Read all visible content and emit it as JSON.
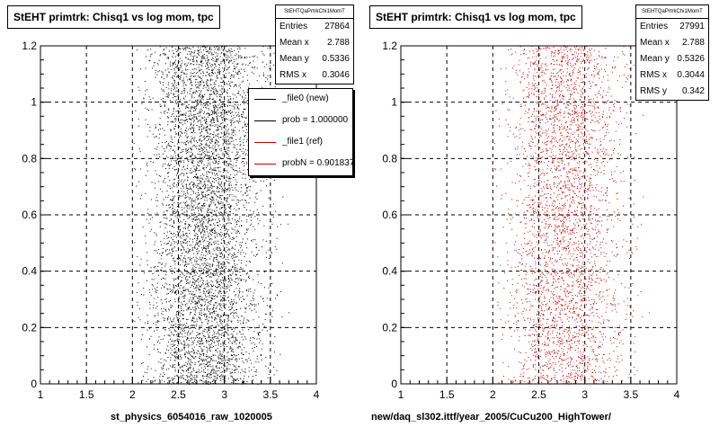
{
  "chart_data": [
    {
      "type": "scatter",
      "title": "StEHT primtrk: Chisq1 vs log mom, tpc",
      "xlabel": "st_physics_6054016_raw_1020005",
      "ylabel": "",
      "xlim": [
        1,
        4
      ],
      "ylim": [
        0,
        1.2
      ],
      "x_ticks": [
        "1",
        "1.5",
        "2",
        "2.5",
        "3",
        "3.5",
        "4"
      ],
      "y_ticks": [
        "0",
        "0.2",
        "0.4",
        "0.6",
        "0.8",
        "1",
        "1.2"
      ],
      "grid": true,
      "point_color": "#000000",
      "x_range_of_points": [
        2.0,
        3.75
      ],
      "x_mean": 2.788,
      "x_rms": 0.3,
      "stats": {
        "header": "StEHTQaPrtrkChi1MomT",
        "entries": {
          "label": "Entries",
          "value": "27864"
        },
        "mean_x": {
          "label": "Mean x",
          "value": "2.788"
        },
        "mean_y": {
          "label": "Mean y",
          "value": "0.5336"
        },
        "rms_x": {
          "label": "RMS x",
          "value": "0.3046"
        }
      }
    },
    {
      "type": "scatter",
      "title": "StEHT primtrk: Chisq1 vs log mom, tpc",
      "xlabel": "new/daq_sl302.ittf/year_2005/CuCu200_HighTower/",
      "ylabel": "",
      "xlim": [
        1,
        4
      ],
      "ylim": [
        0,
        1.2
      ],
      "x_ticks": [
        "1",
        "1.5",
        "2",
        "2.5",
        "3",
        "3.5",
        "4"
      ],
      "y_ticks": [
        "0",
        "0.2",
        "0.4",
        "0.6",
        "0.8",
        "1",
        "1.2"
      ],
      "grid": true,
      "point_color": "#cc0000",
      "x_range_of_points": [
        2.0,
        3.75
      ],
      "x_mean": 2.788,
      "x_rms": 0.3,
      "stats": {
        "header": "StEHTQaPrtrkChi1MomT",
        "entries": {
          "label": "Entries",
          "value": "27991"
        },
        "mean_x": {
          "label": "Mean x",
          "value": "2.788"
        },
        "mean_y": {
          "label": "Mean y",
          "value": "0.5326"
        },
        "rms_x": {
          "label": "RMS x",
          "value": "0.3044"
        },
        "rms_y": {
          "label": "RMS y",
          "value": "0.342"
        }
      }
    }
  ],
  "legend": {
    "placement": "top-right of left panel",
    "items": [
      {
        "label": "_file0 (new)",
        "color": "#000000"
      },
      {
        "label": "prob = 1.000000",
        "color": "#000000"
      },
      {
        "label": "_file1 (ref)",
        "color": "#cc0000"
      },
      {
        "label": "probN = 0.901837",
        "color": "#cc0000"
      }
    ]
  }
}
